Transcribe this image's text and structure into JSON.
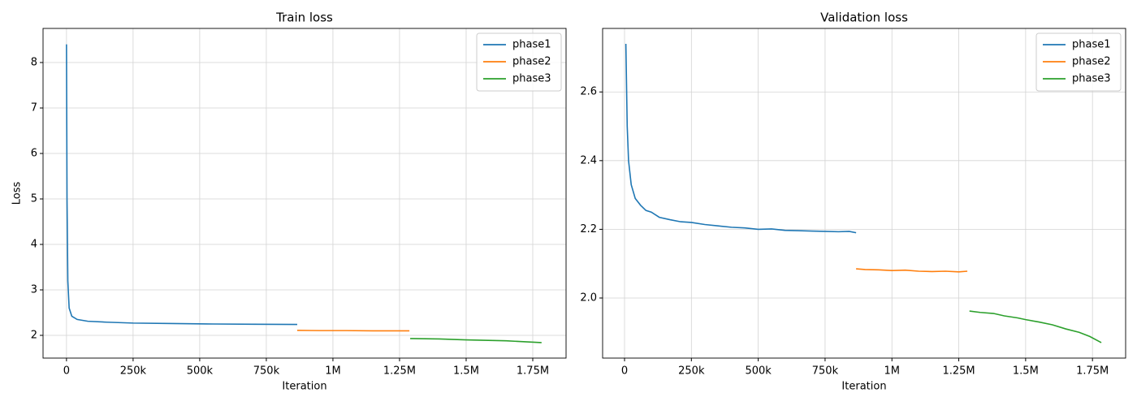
{
  "chart_data": [
    {
      "type": "line",
      "title": "Train loss",
      "xlabel": "Iteration",
      "ylabel": "Loss",
      "xlim": [
        -88000,
        1875000
      ],
      "ylim": [
        1.5,
        8.75
      ],
      "xticks": [
        0,
        {
          "value": 250000,
          "label": "250k"
        },
        {
          "value": 500000,
          "label": "500k"
        },
        {
          "value": 750000,
          "label": "750k"
        },
        {
          "value": 1000000,
          "label": "1M"
        },
        {
          "value": 1250000,
          "label": "1.25M"
        },
        {
          "value": 1500000,
          "label": "1.5M"
        },
        {
          "value": 1750000,
          "label": "1.75M"
        }
      ],
      "yticks": [
        2,
        3,
        4,
        5,
        6,
        7,
        8
      ],
      "grid": true,
      "legend": "upper right",
      "series": [
        {
          "name": "phase1",
          "color": "#1f77b4",
          "x": [
            0,
            2000,
            5000,
            10000,
            20000,
            40000,
            80000,
            150000,
            250000,
            400000,
            550000,
            700000,
            866000
          ],
          "values": [
            8.4,
            5.0,
            3.2,
            2.6,
            2.42,
            2.35,
            2.31,
            2.29,
            2.27,
            2.26,
            2.25,
            2.245,
            2.24
          ]
        },
        {
          "name": "phase2",
          "color": "#ff7f0e",
          "x": [
            866000,
            950000,
            1050000,
            1150000,
            1287000
          ],
          "values": [
            2.11,
            2.105,
            2.105,
            2.1,
            2.1
          ]
        },
        {
          "name": "phase3",
          "color": "#2ca02c",
          "x": [
            1290000,
            1400000,
            1500000,
            1650000,
            1783000
          ],
          "values": [
            1.93,
            1.92,
            1.9,
            1.88,
            1.84
          ]
        }
      ]
    },
    {
      "type": "line",
      "title": "Validation loss",
      "xlabel": "Iteration",
      "xlim": [
        -82000,
        1874000
      ],
      "ylim": [
        1.825,
        2.785
      ],
      "xticks": [
        0,
        {
          "value": 250000,
          "label": "250k"
        },
        {
          "value": 500000,
          "label": "500k"
        },
        {
          "value": 750000,
          "label": "750k"
        },
        {
          "value": 1000000,
          "label": "1M"
        },
        {
          "value": 1250000,
          "label": "1.25M"
        },
        {
          "value": 1500000,
          "label": "1.5M"
        },
        {
          "value": 1750000,
          "label": "1.75M"
        }
      ],
      "yticks": [
        {
          "value": 2,
          "label": "2.0"
        },
        2.2,
        2.4,
        2.6
      ],
      "grid": true,
      "legend": "upper right",
      "series": [
        {
          "name": "phase1",
          "color": "#1f77b4",
          "x": [
            5000,
            10000,
            15000,
            25000,
            40000,
            60000,
            80000,
            100000,
            130000,
            170000,
            210000,
            250000,
            300000,
            350000,
            400000,
            450000,
            500000,
            550000,
            600000,
            650000,
            700000,
            750000,
            800000,
            840000,
            866000
          ],
          "values": [
            2.74,
            2.5,
            2.4,
            2.33,
            2.29,
            2.27,
            2.255,
            2.25,
            2.235,
            2.228,
            2.222,
            2.22,
            2.214,
            2.21,
            2.206,
            2.204,
            2.2,
            2.201,
            2.197,
            2.196,
            2.195,
            2.194,
            2.193,
            2.194,
            2.19
          ]
        },
        {
          "name": "phase2",
          "color": "#ff7f0e",
          "x": [
            866000,
            900000,
            950000,
            1000000,
            1050000,
            1100000,
            1150000,
            1200000,
            1250000,
            1282000
          ],
          "values": [
            2.085,
            2.083,
            2.082,
            2.08,
            2.081,
            2.078,
            2.077,
            2.078,
            2.076,
            2.078
          ]
        },
        {
          "name": "phase3",
          "color": "#2ca02c",
          "x": [
            1290000,
            1330000,
            1380000,
            1420000,
            1470000,
            1500000,
            1550000,
            1600000,
            1650000,
            1700000,
            1740000,
            1783000
          ],
          "values": [
            1.962,
            1.958,
            1.955,
            1.948,
            1.942,
            1.937,
            1.93,
            1.922,
            1.91,
            1.9,
            1.888,
            1.87
          ]
        }
      ]
    }
  ]
}
